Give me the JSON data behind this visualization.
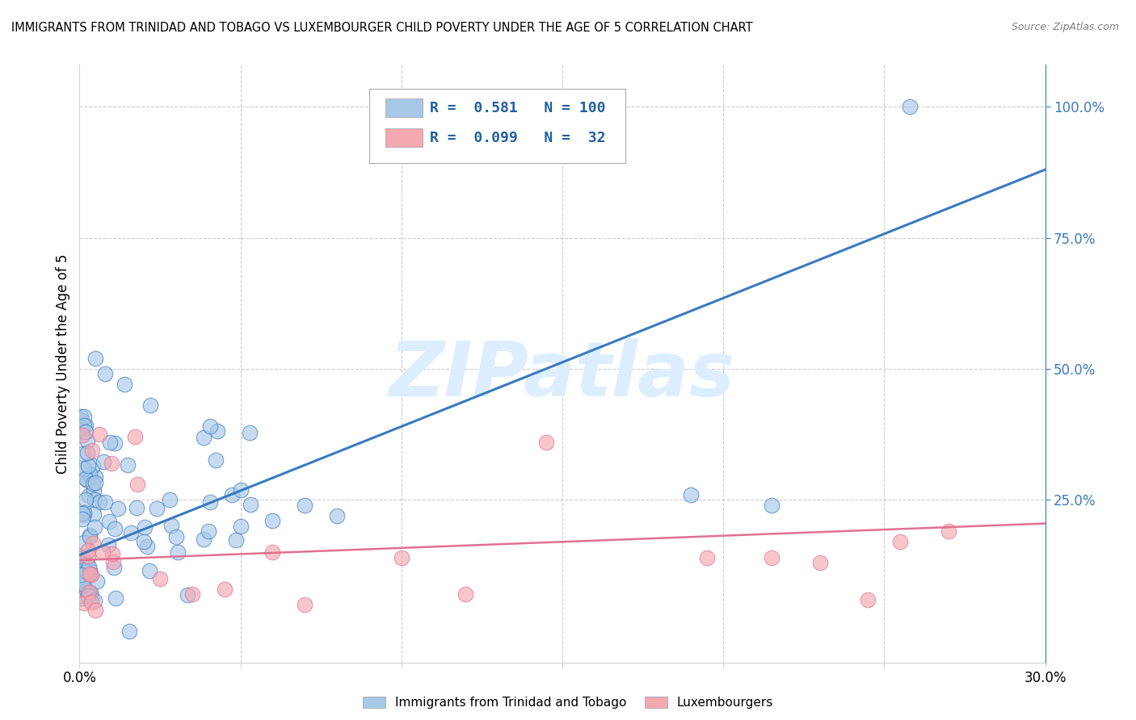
{
  "title": "IMMIGRANTS FROM TRINIDAD AND TOBAGO VS LUXEMBOURGER CHILD POVERTY UNDER THE AGE OF 5 CORRELATION CHART",
  "source": "Source: ZipAtlas.com",
  "ylabel_label": "Child Poverty Under the Age of 5",
  "right_ytick_vals": [
    1.0,
    0.75,
    0.5,
    0.25
  ],
  "right_ytick_labels": [
    "100.0%",
    "75.0%",
    "50.0%",
    "25.0%"
  ],
  "legend_blue_R": "0.581",
  "legend_blue_N": "100",
  "legend_pink_R": "0.099",
  "legend_pink_N": "32",
  "legend_labels": [
    "Immigrants from Trinidad and Tobago",
    "Luxembourgers"
  ],
  "blue_scatter_color": "#a8c8e8",
  "blue_line_color": "#3a7abf",
  "pink_scatter_color": "#f4a8b0",
  "pink_line_color": "#e07090",
  "legend_text_color": "#2060a0",
  "background_color": "#ffffff",
  "grid_color": "#cccccc",
  "watermark": "ZIPatlas",
  "watermark_color": "#dceeff",
  "xlim": [
    0.0,
    0.3
  ],
  "ylim": [
    -0.06,
    1.08
  ],
  "blue_line_x0": 0.0,
  "blue_line_y0": 0.145,
  "blue_line_x1": 0.3,
  "blue_line_y1": 0.88,
  "pink_line_x0": 0.0,
  "pink_line_y0": 0.135,
  "pink_line_x1": 0.3,
  "pink_line_y1": 0.205,
  "xtick_positions": [
    0.0,
    0.05,
    0.1,
    0.15,
    0.2,
    0.25,
    0.3
  ],
  "xtick_labels": [
    "0.0%",
    "",
    "",
    "",
    "",
    "",
    "30.0%"
  ]
}
